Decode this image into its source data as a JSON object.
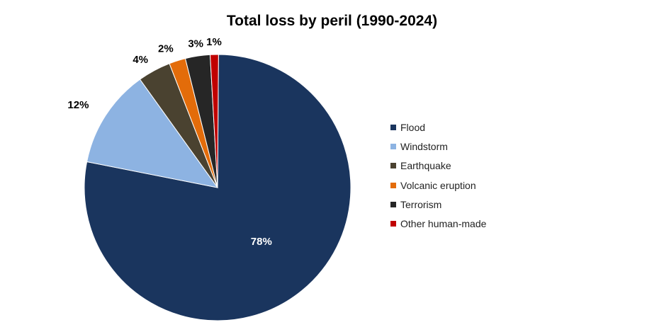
{
  "chart_data": {
    "type": "pie",
    "title": "Total loss by peril (1990-2024)",
    "slices": [
      {
        "label": "Flood",
        "value": 78,
        "display": "78%",
        "color": "#1a355e",
        "label_color": "#ffffff"
      },
      {
        "label": "Windstorm",
        "value": 12,
        "display": "12%",
        "color": "#8db3e2",
        "label_color": "#000000"
      },
      {
        "label": "Earthquake",
        "value": 4,
        "display": "4%",
        "color": "#4a4230",
        "label_color": "#000000"
      },
      {
        "label": "Volcanic eruption",
        "value": 2,
        "display": "2%",
        "color": "#e36c0a",
        "label_color": "#000000"
      },
      {
        "label": "Terrorism",
        "value": 3,
        "display": "3%",
        "color": "#262626",
        "label_color": "#000000"
      },
      {
        "label": "Other human-made",
        "value": 1,
        "display": "1%",
        "color": "#c00000",
        "label_color": "#000000"
      }
    ],
    "legend_position": "right"
  }
}
